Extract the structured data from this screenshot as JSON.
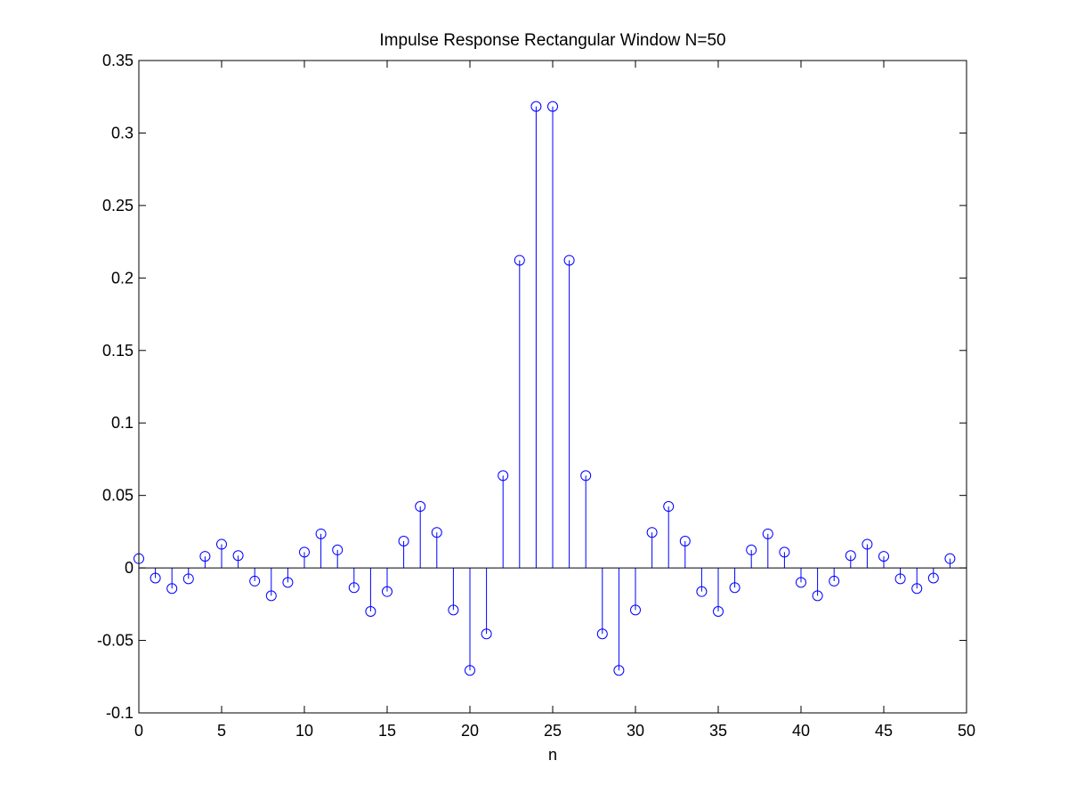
{
  "chart_data": {
    "type": "stem",
    "title": "Impulse Response Rectangular Window N=50",
    "xlabel": "n",
    "ylabel": "",
    "xlim": [
      0,
      50
    ],
    "ylim": [
      -0.1,
      0.35
    ],
    "grid": false,
    "marker": "circle",
    "color": "#0000ff",
    "x_ticks": [
      0,
      5,
      10,
      15,
      20,
      25,
      30,
      35,
      40,
      45,
      50
    ],
    "x_tick_labels": [
      "0",
      "5",
      "10",
      "15",
      "20",
      "25",
      "30",
      "35",
      "40",
      "45",
      "50"
    ],
    "y_ticks": [
      -0.1,
      -0.05,
      0,
      0.05,
      0.1,
      0.15,
      0.2,
      0.25,
      0.3,
      0.35
    ],
    "y_tick_labels": [
      "-0.1",
      "-0.05",
      "0",
      "0.05",
      "0.1",
      "0.15",
      "0.2",
      "0.25",
      "0.3",
      "0.35"
    ],
    "x": [
      0,
      1,
      2,
      3,
      4,
      5,
      6,
      7,
      8,
      9,
      10,
      11,
      12,
      13,
      14,
      15,
      16,
      17,
      18,
      19,
      20,
      21,
      22,
      23,
      24,
      25,
      26,
      27,
      28,
      29,
      30,
      31,
      32,
      33,
      34,
      35,
      36,
      37,
      38,
      39,
      40,
      41,
      42,
      43,
      44,
      45,
      46,
      47,
      48,
      49
    ],
    "values": [
      0.0064,
      -0.007,
      -0.0142,
      -0.0075,
      0.008,
      0.0163,
      0.0085,
      -0.0091,
      -0.0192,
      -0.01,
      0.0109,
      0.0235,
      0.0124,
      -0.0136,
      -0.03,
      -0.0163,
      0.0185,
      0.0424,
      0.0245,
      -0.029,
      -0.0707,
      -0.0455,
      0.0637,
      0.2122,
      0.3183,
      0.3183,
      0.2122,
      0.0637,
      -0.0455,
      -0.0707,
      -0.029,
      0.0245,
      0.0424,
      0.0185,
      -0.0163,
      -0.03,
      -0.0136,
      0.0124,
      0.0235,
      0.0109,
      -0.01,
      -0.0192,
      -0.0091,
      0.0085,
      0.0163,
      0.008,
      -0.0075,
      -0.0142,
      -0.007,
      0.0064
    ]
  }
}
